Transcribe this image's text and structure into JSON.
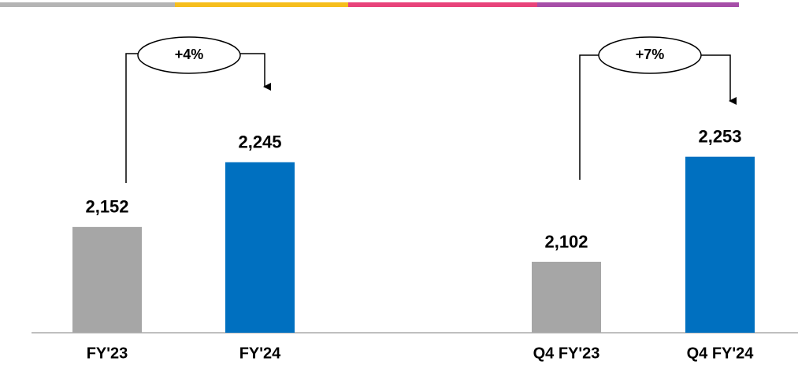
{
  "chart_data": {
    "type": "bar",
    "categories": [
      "FY'23",
      "FY'24",
      "Q4 FY'23",
      "Q4 FY'24"
    ],
    "values": [
      2152,
      2245,
      2102,
      2253
    ],
    "value_labels": [
      "2,152",
      "2,245",
      "2,102",
      "2,253"
    ],
    "colors": [
      "#a6a6a6",
      "#0070c0",
      "#a6a6a6",
      "#0070c0"
    ],
    "ylim": [
      2000,
      2400
    ],
    "annotations": [
      "+4%",
      "+7%"
    ]
  }
}
